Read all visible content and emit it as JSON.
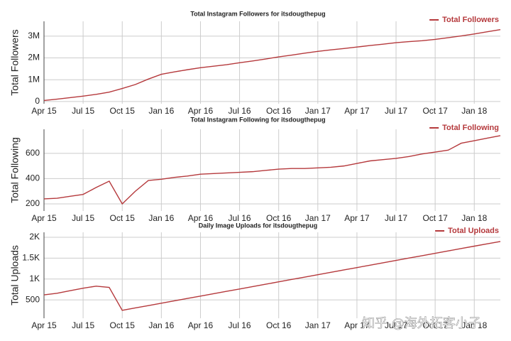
{
  "charts": [
    {
      "type": "line",
      "title": "Total Instagram Followers for itsdougthepug",
      "y_label": "Total Followers",
      "x": [
        "2015-04",
        "2015-05",
        "2015-06",
        "2015-07",
        "2015-08",
        "2015-09",
        "2015-10",
        "2015-11",
        "2015-12",
        "2016-01",
        "2016-02",
        "2016-03",
        "2016-04",
        "2016-05",
        "2016-06",
        "2016-07",
        "2016-08",
        "2016-09",
        "2016-10",
        "2016-11",
        "2016-12",
        "2017-01",
        "2017-02",
        "2017-03",
        "2017-04",
        "2017-05",
        "2017-06",
        "2017-07",
        "2017-08",
        "2017-09",
        "2017-10",
        "2017-11",
        "2017-12",
        "2018-01",
        "2018-02",
        "2018-03"
      ],
      "series": [
        {
          "name": "Total Followers",
          "color": "#b5393c",
          "values": [
            50000,
            110000,
            180000,
            250000,
            330000,
            430000,
            600000,
            780000,
            1030000,
            1250000,
            1360000,
            1460000,
            1550000,
            1620000,
            1690000,
            1780000,
            1860000,
            1950000,
            2050000,
            2130000,
            2220000,
            2300000,
            2370000,
            2430000,
            2500000,
            2570000,
            2630000,
            2700000,
            2750000,
            2790000,
            2850000,
            2930000,
            3010000,
            3100000,
            3200000,
            3300000
          ]
        }
      ],
      "xlim": [
        "2015-04",
        "2018-03"
      ],
      "ylim": [
        -100000,
        3680000
      ],
      "yticks": [
        0,
        {
          "value": 1000000,
          "label": "1M"
        },
        {
          "value": 2000000,
          "label": "2M"
        },
        {
          "value": 3000000,
          "label": "3M"
        }
      ],
      "xticks": [
        {
          "value": "2015-04",
          "label": "Apr 15"
        },
        {
          "value": "2015-07",
          "label": "Jul 15"
        },
        {
          "value": "2015-10",
          "label": "Oct 15"
        },
        {
          "value": "2016-01",
          "label": "Jan 16"
        },
        {
          "value": "2016-04",
          "label": "Apr 16"
        },
        {
          "value": "2016-07",
          "label": "Jul 16"
        },
        {
          "value": "2016-10",
          "label": "Oct 16"
        },
        {
          "value": "2017-01",
          "label": "Jan 17"
        },
        {
          "value": "2017-04",
          "label": "Apr 17"
        },
        {
          "value": "2017-07",
          "label": "Jul 17"
        },
        {
          "value": "2017-10",
          "label": "Oct 17"
        },
        {
          "value": "2018-01",
          "label": "Jan 18"
        }
      ],
      "grid": true,
      "legend": "top-right"
    },
    {
      "type": "line",
      "title": "Total Instagram Following for itsdougthepug",
      "y_label": "Total Following",
      "x": [
        "2015-04",
        "2015-05",
        "2015-06",
        "2015-07",
        "2015-08",
        "2015-09",
        "2015-10",
        "2015-11",
        "2015-12",
        "2016-01",
        "2016-02",
        "2016-03",
        "2016-04",
        "2016-05",
        "2016-06",
        "2016-07",
        "2016-08",
        "2016-09",
        "2016-10",
        "2016-11",
        "2016-12",
        "2017-01",
        "2017-02",
        "2017-03",
        "2017-04",
        "2017-05",
        "2017-06",
        "2017-07",
        "2017-08",
        "2017-09",
        "2017-10",
        "2017-11",
        "2017-12",
        "2018-01",
        "2018-02",
        "2018-03"
      ],
      "series": [
        {
          "name": "Total Following",
          "color": "#b5393c",
          "values": [
            240,
            245,
            260,
            275,
            330,
            380,
            200,
            300,
            385,
            395,
            410,
            420,
            435,
            440,
            445,
            450,
            455,
            465,
            475,
            480,
            480,
            485,
            490,
            500,
            520,
            540,
            550,
            560,
            575,
            595,
            610,
            625,
            680,
            700,
            720,
            740
          ]
        }
      ],
      "xlim": [
        "2015-04",
        "2018-03"
      ],
      "ylim": [
        144,
        790
      ],
      "yticks": [
        200,
        400,
        600
      ],
      "xticks": [
        {
          "value": "2015-04",
          "label": "Apr 15"
        },
        {
          "value": "2015-07",
          "label": "Jul 15"
        },
        {
          "value": "2015-10",
          "label": "Oct 15"
        },
        {
          "value": "2016-01",
          "label": "Jan 16"
        },
        {
          "value": "2016-04",
          "label": "Apr 16"
        },
        {
          "value": "2016-07",
          "label": "Jul 16"
        },
        {
          "value": "2016-10",
          "label": "Oct 16"
        },
        {
          "value": "2017-01",
          "label": "Jan 17"
        },
        {
          "value": "2017-04",
          "label": "Apr 17"
        },
        {
          "value": "2017-07",
          "label": "Jul 17"
        },
        {
          "value": "2017-10",
          "label": "Oct 17"
        },
        {
          "value": "2018-01",
          "label": "Jan 18"
        }
      ],
      "grid": true,
      "legend": "top-right"
    },
    {
      "type": "line",
      "title": "Daily Image Uploads for itsdougthepug",
      "y_label": "Total Uploads",
      "x": [
        "2015-04",
        "2015-05",
        "2015-06",
        "2015-07",
        "2015-08",
        "2015-09",
        "2015-10",
        "2015-11",
        "2015-12",
        "2016-01",
        "2016-02",
        "2016-03",
        "2016-04",
        "2016-05",
        "2016-06",
        "2016-07",
        "2016-08",
        "2016-09",
        "2016-10",
        "2016-11",
        "2016-12",
        "2017-01",
        "2017-02",
        "2017-03",
        "2017-04",
        "2017-05",
        "2017-06",
        "2017-07",
        "2017-08",
        "2017-09",
        "2017-10",
        "2017-11",
        "2017-12",
        "2018-01",
        "2018-02",
        "2018-03"
      ],
      "series": [
        {
          "name": "Total Uploads",
          "color": "#b5393c",
          "values": [
            620,
            660,
            720,
            780,
            830,
            800,
            250,
            307,
            364,
            421,
            478,
            535,
            592,
            648,
            705,
            762,
            819,
            876,
            933,
            990,
            1047,
            1104,
            1161,
            1218,
            1275,
            1332,
            1389,
            1446,
            1503,
            1560,
            1617,
            1674,
            1731,
            1788,
            1845,
            1900
          ]
        }
      ],
      "xlim": [
        "2015-04",
        "2018-03"
      ],
      "ylim": [
        60,
        2120
      ],
      "yticks": [
        500,
        {
          "value": 1000,
          "label": "1K"
        },
        {
          "value": 1500,
          "label": "1.5K"
        },
        {
          "value": 2000,
          "label": "2K"
        }
      ],
      "xticks": [
        {
          "value": "2015-04",
          "label": "Apr 15"
        },
        {
          "value": "2015-07",
          "label": "Jul 15"
        },
        {
          "value": "2015-10",
          "label": "Oct 15"
        },
        {
          "value": "2016-01",
          "label": "Jan 16"
        },
        {
          "value": "2016-04",
          "label": "Apr 16"
        },
        {
          "value": "2016-07",
          "label": "Jul 16"
        },
        {
          "value": "2016-10",
          "label": "Oct 16"
        },
        {
          "value": "2017-01",
          "label": "Jan 17"
        },
        {
          "value": "2017-04",
          "label": "Apr 17"
        },
        {
          "value": "2017-07",
          "label": "Jul 17"
        },
        {
          "value": "2017-10",
          "label": "Oct 17"
        },
        {
          "value": "2018-01",
          "label": "Jan 18"
        }
      ],
      "grid": true,
      "legend": "top-right"
    }
  ],
  "watermark": "知乎 @海外拓客小子"
}
